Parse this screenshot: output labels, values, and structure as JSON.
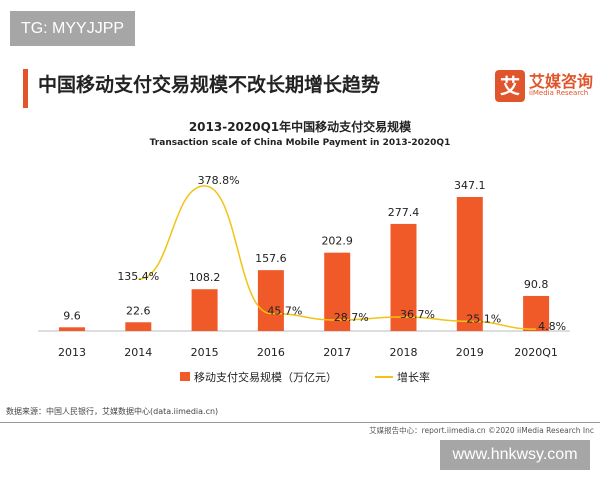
{
  "watermark_top": "TG: MYYJJPP",
  "headline": "中国移动支付交易规模不改长期增长趋势",
  "logo": {
    "mark": "艾",
    "cn": "艾媒咨询",
    "en": "iiMedia Research"
  },
  "source": "数据来源：中国人民银行，艾媒数据中心(data.iimedia.cn)",
  "footer": "艾媒报告中心：report.iimedia.cn   ©2020  iiMedia Research  Inc",
  "watermark_bottom": "www.hnkwsy.com",
  "colors": {
    "bar": "#f05a28",
    "line": "#f2c314",
    "accent": "#e0552b"
  },
  "chart_data": {
    "type": "bar+line",
    "title": "2013-2020Q1年中国移动支付交易规模",
    "subtitle": "Transaction scale of China Mobile Payment in 2013-2020Q1",
    "categories": [
      "2013",
      "2014",
      "2015",
      "2016",
      "2017",
      "2018",
      "2019",
      "2020Q1"
    ],
    "series": [
      {
        "name": "移动支付交易规模（万亿元）",
        "type": "bar",
        "values": [
          9.6,
          22.6,
          108.2,
          157.6,
          202.9,
          277.4,
          347.1,
          90.8
        ],
        "labels": [
          "9.6",
          "22.6",
          "108.2",
          "157.6",
          "202.9",
          "277.4",
          "347.1",
          "90.8"
        ]
      },
      {
        "name": "增长率",
        "type": "line",
        "values": [
          null,
          135.4,
          378.8,
          45.7,
          28.7,
          36.7,
          25.1,
          4.8
        ],
        "labels": [
          "",
          "135.4%",
          "378.8%",
          "45.7%",
          "28.7%",
          "36.7%",
          "25.1%",
          "4.8%"
        ]
      }
    ],
    "legend": "bottom",
    "grid": false
  }
}
